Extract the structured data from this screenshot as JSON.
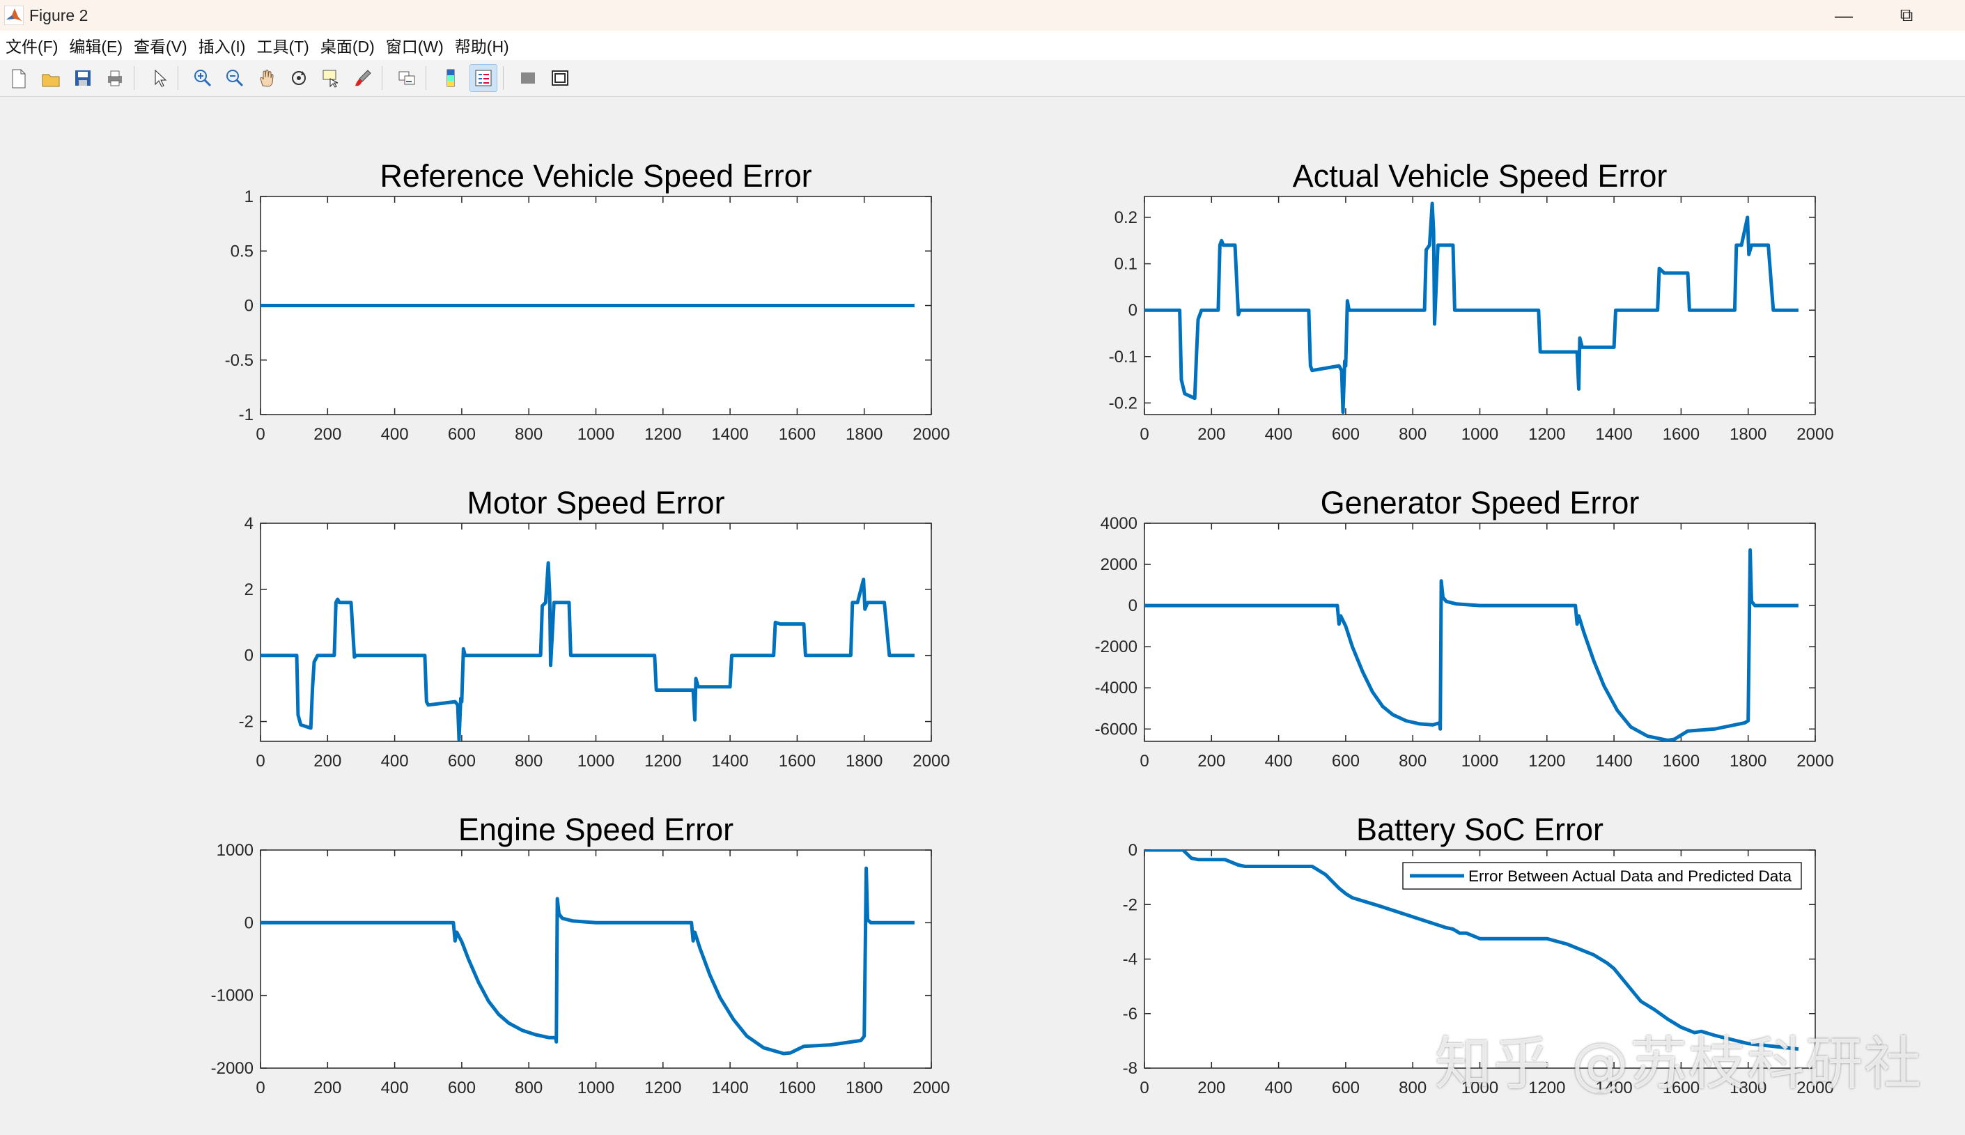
{
  "window": {
    "title": "Figure 2",
    "minimize_glyph": "—",
    "restore_glyph": "⧉"
  },
  "menu": [
    "文件(F)",
    "编辑(E)",
    "查看(V)",
    "插入(I)",
    "工具(T)",
    "桌面(D)",
    "窗口(W)",
    "帮助(H)"
  ],
  "toolbar": [
    {
      "icon": "new-figure-icon"
    },
    {
      "icon": "open-file-icon"
    },
    {
      "icon": "save-icon"
    },
    {
      "icon": "print-icon"
    },
    {
      "sep": true
    },
    {
      "icon": "pointer-icon"
    },
    {
      "sep": true
    },
    {
      "icon": "zoom-in-icon"
    },
    {
      "icon": "zoom-out-icon"
    },
    {
      "icon": "pan-hand-icon"
    },
    {
      "icon": "rotate-3d-icon"
    },
    {
      "icon": "data-cursor-icon"
    },
    {
      "icon": "brush-icon"
    },
    {
      "sep": true
    },
    {
      "icon": "link-plot-icon"
    },
    {
      "sep": true
    },
    {
      "icon": "colorbar-icon"
    },
    {
      "icon": "legend-icon",
      "active": true
    },
    {
      "sep": true
    },
    {
      "icon": "hide-tools-icon"
    },
    {
      "icon": "show-tools-icon"
    }
  ],
  "watermark": "知乎 @苏枝科研社",
  "line_color": "#0072BD",
  "chart_data": [
    {
      "type": "line",
      "title": "Reference Vehicle Speed Error",
      "xlim": [
        0,
        2000
      ],
      "ylim": [
        -1,
        1
      ],
      "xticks": [
        0,
        200,
        400,
        600,
        800,
        1000,
        1200,
        1400,
        1600,
        1800,
        2000
      ],
      "xticklabels": [
        "0",
        "200",
        "400",
        "600",
        "800",
        "1000",
        "1200",
        "1400",
        "1600",
        "1800",
        "2000"
      ],
      "yticks": [
        -1,
        -0.5,
        0,
        0.5,
        1
      ],
      "yticklabels": [
        "-1",
        "-0.5",
        "0",
        "0.5",
        "1"
      ],
      "x": [
        0,
        1950
      ],
      "y": [
        0,
        0
      ]
    },
    {
      "type": "line",
      "title": "Actual Vehicle Speed Error",
      "xlim": [
        0,
        2000
      ],
      "ylim": [
        -0.225,
        0.245
      ],
      "xticks": [
        0,
        200,
        400,
        600,
        800,
        1000,
        1200,
        1400,
        1600,
        1800,
        2000
      ],
      "xticklabels": [
        "0",
        "200",
        "400",
        "600",
        "800",
        "1000",
        "1200",
        "1400",
        "1600",
        "1800",
        "2000"
      ],
      "yticks": [
        -0.2,
        -0.1,
        0,
        0.1,
        0.2
      ],
      "yticklabels": [
        "-0.2",
        "-0.1",
        "0",
        "0.1",
        "0.2"
      ],
      "x": [
        0,
        105,
        110,
        120,
        150,
        155,
        160,
        170,
        220,
        225,
        230,
        235,
        270,
        280,
        285,
        490,
        495,
        500,
        580,
        588,
        592,
        597,
        600,
        605,
        610,
        835,
        840,
        850,
        858,
        862,
        865,
        875,
        920,
        925,
        1175,
        1180,
        1200,
        1290,
        1295,
        1298,
        1305,
        1400,
        1405,
        1410,
        1530,
        1535,
        1550,
        1620,
        1625,
        1760,
        1765,
        1780,
        1798,
        1802,
        1810,
        1860,
        1875,
        1950
      ],
      "y": [
        0,
        0,
        -0.15,
        -0.18,
        -0.19,
        -0.1,
        -0.02,
        0,
        0,
        0.14,
        0.15,
        0.14,
        0.14,
        -0.01,
        0,
        0,
        -0.12,
        -0.13,
        -0.12,
        -0.13,
        -0.22,
        -0.11,
        -0.12,
        0.02,
        0,
        0,
        0.13,
        0.14,
        0.23,
        0.17,
        -0.03,
        0.14,
        0.14,
        0,
        0,
        -0.09,
        -0.09,
        -0.09,
        -0.17,
        -0.06,
        -0.08,
        -0.08,
        0,
        0,
        0,
        0.09,
        0.08,
        0.08,
        0,
        0,
        0.14,
        0.14,
        0.2,
        0.12,
        0.14,
        0.14,
        0,
        0
      ]
    },
    {
      "type": "line",
      "title": "Motor Speed Error",
      "xlim": [
        0,
        2000
      ],
      "ylim": [
        -2.6,
        4
      ],
      "xticks": [
        0,
        200,
        400,
        600,
        800,
        1000,
        1200,
        1400,
        1600,
        1800,
        2000
      ],
      "xticklabels": [
        "0",
        "200",
        "400",
        "600",
        "800",
        "1000",
        "1200",
        "1400",
        "1600",
        "1800",
        "2000"
      ],
      "yticks": [
        -2,
        0,
        2,
        4
      ],
      "yticklabels": [
        "-2",
        "0",
        "2",
        "4"
      ],
      "x": [
        0,
        108,
        112,
        120,
        150,
        155,
        160,
        170,
        220,
        225,
        230,
        235,
        270,
        280,
        285,
        490,
        495,
        500,
        580,
        588,
        592,
        597,
        600,
        605,
        610,
        835,
        840,
        850,
        858,
        862,
        865,
        875,
        920,
        925,
        1175,
        1180,
        1200,
        1290,
        1295,
        1298,
        1305,
        1400,
        1405,
        1410,
        1530,
        1535,
        1550,
        1620,
        1625,
        1760,
        1765,
        1780,
        1798,
        1802,
        1810,
        1860,
        1875,
        1950
      ],
      "y": [
        0,
        0,
        -1.8,
        -2.1,
        -2.2,
        -1.0,
        -0.2,
        0,
        0,
        1.6,
        1.7,
        1.6,
        1.6,
        -0.05,
        0,
        0,
        -1.4,
        -1.5,
        -1.4,
        -1.5,
        -2.55,
        -1.3,
        -1.4,
        0.2,
        0,
        0,
        1.5,
        1.6,
        2.8,
        1.9,
        -0.3,
        1.6,
        1.6,
        0,
        0,
        -1.05,
        -1.05,
        -1.05,
        -1.95,
        -0.7,
        -0.95,
        -0.95,
        0,
        0,
        0,
        1.0,
        0.95,
        0.95,
        0,
        0,
        1.6,
        1.6,
        2.3,
        1.4,
        1.6,
        1.6,
        0,
        0
      ]
    },
    {
      "type": "line",
      "title": "Generator Speed Error",
      "xlim": [
        0,
        2000
      ],
      "ylim": [
        -6600,
        4000
      ],
      "xticks": [
        0,
        200,
        400,
        600,
        800,
        1000,
        1200,
        1400,
        1600,
        1800,
        2000
      ],
      "xticklabels": [
        "0",
        "200",
        "400",
        "600",
        "800",
        "1000",
        "1200",
        "1400",
        "1600",
        "1800",
        "2000"
      ],
      "yticks": [
        -6000,
        -4000,
        -2000,
        0,
        2000,
        4000
      ],
      "yticklabels": [
        "-6000",
        "-4000",
        "-2000",
        "0",
        "2000",
        "4000"
      ],
      "x": [
        0,
        575,
        580,
        585,
        600,
        620,
        650,
        680,
        710,
        740,
        780,
        820,
        860,
        880,
        882,
        885,
        890,
        900,
        930,
        1000,
        1100,
        1200,
        1285,
        1290,
        1295,
        1310,
        1340,
        1370,
        1410,
        1450,
        1500,
        1560,
        1580,
        1620,
        1700,
        1790,
        1800,
        1806,
        1810,
        1820,
        1950
      ],
      "y": [
        0,
        0,
        -900,
        -500,
        -1000,
        -2000,
        -3200,
        -4200,
        -4900,
        -5300,
        -5600,
        -5750,
        -5800,
        -5700,
        -6000,
        1200,
        400,
        200,
        80,
        0,
        0,
        0,
        0,
        -900,
        -500,
        -1300,
        -2700,
        -3900,
        -5100,
        -5900,
        -6350,
        -6550,
        -6500,
        -6100,
        -6000,
        -5700,
        -5600,
        2700,
        200,
        0,
        0
      ]
    },
    {
      "type": "line",
      "title": "Engine Speed Error",
      "xlim": [
        0,
        2000
      ],
      "ylim": [
        -2000,
        1000
      ],
      "xticks": [
        0,
        200,
        400,
        600,
        800,
        1000,
        1200,
        1400,
        1600,
        1800,
        2000
      ],
      "xticklabels": [
        "0",
        "200",
        "400",
        "600",
        "800",
        "1000",
        "1200",
        "1400",
        "1600",
        "1800",
        "2000"
      ],
      "yticks": [
        -2000,
        -1000,
        0,
        1000
      ],
      "yticklabels": [
        "-2000",
        "-1000",
        "0",
        "1000"
      ],
      "x": [
        0,
        575,
        580,
        585,
        600,
        620,
        650,
        680,
        710,
        740,
        780,
        820,
        860,
        880,
        882,
        885,
        890,
        900,
        930,
        1000,
        1100,
        1200,
        1285,
        1290,
        1295,
        1310,
        1340,
        1370,
        1410,
        1450,
        1500,
        1560,
        1580,
        1620,
        1700,
        1790,
        1800,
        1806,
        1810,
        1820,
        1950
      ],
      "y": [
        0,
        0,
        -250,
        -130,
        -260,
        -500,
        -820,
        -1080,
        -1260,
        -1380,
        -1480,
        -1540,
        -1580,
        -1580,
        -1640,
        330,
        120,
        60,
        25,
        0,
        0,
        0,
        0,
        -250,
        -130,
        -350,
        -720,
        -1030,
        -1330,
        -1560,
        -1720,
        -1800,
        -1790,
        -1700,
        -1680,
        -1620,
        -1560,
        750,
        40,
        0,
        0
      ]
    },
    {
      "type": "line",
      "title": "Battery SoC Error",
      "xlim": [
        0,
        2000
      ],
      "ylim": [
        -8,
        0
      ],
      "xticks": [
        0,
        200,
        400,
        600,
        800,
        1000,
        1200,
        1400,
        1600,
        1800,
        2000
      ],
      "xticklabels": [
        "0",
        "200",
        "400",
        "600",
        "800",
        "1000",
        "1200",
        "1400",
        "1600",
        "1800",
        "2000"
      ],
      "yticks": [
        -8,
        -6,
        -4,
        -2,
        0
      ],
      "yticklabels": [
        "-8",
        "-6",
        "-4",
        "-2",
        "0"
      ],
      "legend": "Error Between Actual Data and Predicted Data",
      "legend_position": "top-right",
      "x": [
        0,
        115,
        140,
        160,
        240,
        280,
        300,
        500,
        540,
        560,
        580,
        600,
        620,
        700,
        800,
        900,
        920,
        940,
        960,
        980,
        1000,
        1200,
        1260,
        1300,
        1340,
        1380,
        1400,
        1440,
        1480,
        1520,
        1560,
        1600,
        1640,
        1660,
        1700,
        1800,
        1950
      ],
      "y": [
        0,
        0,
        -0.3,
        -0.35,
        -0.35,
        -0.55,
        -0.6,
        -0.6,
        -0.9,
        -1.15,
        -1.4,
        -1.6,
        -1.75,
        -2.05,
        -2.45,
        -2.85,
        -2.9,
        -3.05,
        -3.05,
        -3.15,
        -3.25,
        -3.25,
        -3.45,
        -3.65,
        -3.85,
        -4.15,
        -4.35,
        -4.95,
        -5.55,
        -5.85,
        -6.2,
        -6.5,
        -6.7,
        -6.65,
        -6.8,
        -7.1,
        -7.3
      ]
    }
  ]
}
